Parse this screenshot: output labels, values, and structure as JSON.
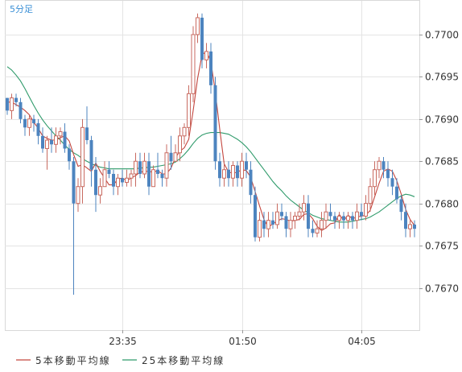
{
  "timeframe_label": "5分足",
  "legend": [
    {
      "label": "5本移動平均線",
      "color": "#c4473f"
    },
    {
      "label": "25本移動平均線",
      "color": "#2e9a6a"
    }
  ],
  "colors": {
    "up": "#c86a60",
    "down": "#4d84bf"
  },
  "chart_data": {
    "type": "candlestick",
    "ylim": [
      0.7665,
      0.7704
    ],
    "y_ticks": [
      0.77,
      0.7695,
      0.769,
      0.7685,
      0.768,
      0.7675,
      0.767
    ],
    "y_tick_labels": [
      "0.7700",
      "0.7695",
      "0.7690",
      "0.7685",
      "0.7680",
      "0.7675",
      "0.7670"
    ],
    "x_ticks": [
      {
        "index": 26,
        "label": "23:35"
      },
      {
        "index": 53,
        "label": "01:50"
      },
      {
        "index": 80,
        "label": "04:05"
      }
    ],
    "candles": [
      [
        0.76925,
        0.76925,
        0.76905,
        0.7691
      ],
      [
        0.7691,
        0.7693,
        0.769,
        0.76925
      ],
      [
        0.76925,
        0.7693,
        0.76915,
        0.7692
      ],
      [
        0.7692,
        0.76925,
        0.76895,
        0.769
      ],
      [
        0.769,
        0.76905,
        0.7688,
        0.7689
      ],
      [
        0.7689,
        0.76905,
        0.7688,
        0.769
      ],
      [
        0.769,
        0.76905,
        0.76885,
        0.76895
      ],
      [
        0.76895,
        0.769,
        0.7687,
        0.7688
      ],
      [
        0.7688,
        0.7689,
        0.7686,
        0.76865
      ],
      [
        0.76865,
        0.7688,
        0.7684,
        0.76875
      ],
      [
        0.76875,
        0.7689,
        0.7686,
        0.7687
      ],
      [
        0.7687,
        0.7689,
        0.7686,
        0.7688
      ],
      [
        0.7688,
        0.7689,
        0.7687,
        0.76885
      ],
      [
        0.76885,
        0.76895,
        0.7686,
        0.76865
      ],
      [
        0.76865,
        0.7687,
        0.7684,
        0.7685
      ],
      [
        0.7685,
        0.76855,
        0.76692,
        0.768
      ],
      [
        0.768,
        0.7683,
        0.7679,
        0.7682
      ],
      [
        0.7682,
        0.769,
        0.768,
        0.7689
      ],
      [
        0.7689,
        0.76915,
        0.7687,
        0.76875
      ],
      [
        0.76875,
        0.7688,
        0.7682,
        0.7684
      ],
      [
        0.7684,
        0.76855,
        0.7679,
        0.7681
      ],
      [
        0.7681,
        0.7683,
        0.768,
        0.7682
      ],
      [
        0.7682,
        0.7685,
        0.7682,
        0.7684
      ],
      [
        0.7684,
        0.7685,
        0.7683,
        0.76835
      ],
      [
        0.76835,
        0.7684,
        0.7681,
        0.7682
      ],
      [
        0.7682,
        0.76835,
        0.7681,
        0.7683
      ],
      [
        0.7683,
        0.7684,
        0.7682,
        0.76825
      ],
      [
        0.76825,
        0.7684,
        0.7682,
        0.7683
      ],
      [
        0.7683,
        0.7684,
        0.7682,
        0.76835
      ],
      [
        0.76835,
        0.7686,
        0.7682,
        0.7685
      ],
      [
        0.7685,
        0.7686,
        0.7683,
        0.76835
      ],
      [
        0.76835,
        0.7686,
        0.7683,
        0.7685
      ],
      [
        0.7685,
        0.7686,
        0.7681,
        0.7682
      ],
      [
        0.7682,
        0.76845,
        0.7682,
        0.7684
      ],
      [
        0.7684,
        0.7686,
        0.7683,
        0.76835
      ],
      [
        0.76835,
        0.7684,
        0.7682,
        0.7683
      ],
      [
        0.7683,
        0.7687,
        0.7682,
        0.7686
      ],
      [
        0.7686,
        0.7688,
        0.7684,
        0.7685
      ],
      [
        0.7685,
        0.7687,
        0.7685,
        0.7686
      ],
      [
        0.7686,
        0.7689,
        0.7685,
        0.7688
      ],
      [
        0.7688,
        0.76895,
        0.7687,
        0.7689
      ],
      [
        0.7689,
        0.7694,
        0.7688,
        0.7693
      ],
      [
        0.7693,
        0.7701,
        0.7692,
        0.77
      ],
      [
        0.77,
        0.77025,
        0.7699,
        0.7702
      ],
      [
        0.7702,
        0.77025,
        0.7696,
        0.7697
      ],
      [
        0.7697,
        0.7699,
        0.7696,
        0.7698
      ],
      [
        0.7698,
        0.7699,
        0.7693,
        0.7694
      ],
      [
        0.7694,
        0.7695,
        0.7684,
        0.7685
      ],
      [
        0.7685,
        0.7686,
        0.7682,
        0.7683
      ],
      [
        0.7683,
        0.7685,
        0.7682,
        0.7684
      ],
      [
        0.7684,
        0.7685,
        0.7682,
        0.7683
      ],
      [
        0.7683,
        0.7685,
        0.7682,
        0.76845
      ],
      [
        0.76845,
        0.7685,
        0.7682,
        0.7683
      ],
      [
        0.7683,
        0.7686,
        0.7682,
        0.7685
      ],
      [
        0.7685,
        0.7686,
        0.7683,
        0.7684
      ],
      [
        0.7684,
        0.7685,
        0.768,
        0.7681
      ],
      [
        0.7681,
        0.7682,
        0.76755,
        0.7676
      ],
      [
        0.7676,
        0.7679,
        0.76755,
        0.7678
      ],
      [
        0.7678,
        0.7679,
        0.7676,
        0.7677
      ],
      [
        0.7677,
        0.7679,
        0.7676,
        0.7678
      ],
      [
        0.7678,
        0.7679,
        0.7677,
        0.76775
      ],
      [
        0.76775,
        0.768,
        0.7677,
        0.7679
      ],
      [
        0.7679,
        0.768,
        0.7678,
        0.76785
      ],
      [
        0.76785,
        0.7679,
        0.7676,
        0.7677
      ],
      [
        0.7677,
        0.7679,
        0.7676,
        0.7678
      ],
      [
        0.7678,
        0.7679,
        0.7677,
        0.76785
      ],
      [
        0.76785,
        0.768,
        0.7678,
        0.7679
      ],
      [
        0.7679,
        0.7681,
        0.7678,
        0.768
      ],
      [
        0.768,
        0.7681,
        0.7676,
        0.7677
      ],
      [
        0.7677,
        0.7678,
        0.7676,
        0.76765
      ],
      [
        0.76765,
        0.7678,
        0.7676,
        0.7677
      ],
      [
        0.7677,
        0.7679,
        0.7676,
        0.7678
      ],
      [
        0.7678,
        0.768,
        0.7677,
        0.7679
      ],
      [
        0.7679,
        0.768,
        0.7678,
        0.76785
      ],
      [
        0.76785,
        0.7679,
        0.7677,
        0.7678
      ],
      [
        0.7678,
        0.7679,
        0.7677,
        0.76785
      ],
      [
        0.76785,
        0.7679,
        0.7677,
        0.7678
      ],
      [
        0.7678,
        0.7679,
        0.7677,
        0.76785
      ],
      [
        0.76785,
        0.7679,
        0.7677,
        0.7678
      ],
      [
        0.7678,
        0.768,
        0.7677,
        0.7679
      ],
      [
        0.7679,
        0.768,
        0.7678,
        0.76785
      ],
      [
        0.76785,
        0.7681,
        0.7678,
        0.768
      ],
      [
        0.768,
        0.7683,
        0.7679,
        0.7682
      ],
      [
        0.7682,
        0.7685,
        0.7681,
        0.7684
      ],
      [
        0.7684,
        0.76855,
        0.7683,
        0.7685
      ],
      [
        0.7685,
        0.76855,
        0.7683,
        0.7684
      ],
      [
        0.7684,
        0.7685,
        0.7682,
        0.7683
      ],
      [
        0.7683,
        0.7684,
        0.7681,
        0.7682
      ],
      [
        0.7682,
        0.7683,
        0.768,
        0.76805
      ],
      [
        0.76805,
        0.7681,
        0.7678,
        0.7679
      ],
      [
        0.7679,
        0.768,
        0.7676,
        0.7677
      ],
      [
        0.7677,
        0.7678,
        0.7676,
        0.76775
      ],
      [
        0.76775,
        0.7678,
        0.7676,
        0.7677
      ]
    ],
    "series": [
      {
        "name": "5本移動平均線",
        "values": [
          0.7692,
          0.7692,
          0.76917,
          0.76914,
          0.7691,
          0.76905,
          0.76896,
          0.76889,
          0.7688,
          0.76877,
          0.76875,
          0.76875,
          0.76878,
          0.7688,
          0.76874,
          0.76858,
          0.76844,
          0.76846,
          0.76842,
          0.76838,
          0.76848,
          0.76838,
          0.7683,
          0.76822,
          0.76822,
          0.76829,
          0.7683,
          0.76827,
          0.7683,
          0.76833,
          0.76837,
          0.76838,
          0.76838,
          0.76837,
          0.76839,
          0.76835,
          0.76835,
          0.76842,
          0.76854,
          0.76862,
          0.76866,
          0.76876,
          0.7691,
          0.76948,
          0.76976,
          0.7698,
          0.76968,
          0.76932,
          0.76888,
          0.76847,
          0.76837,
          0.76836,
          0.76837,
          0.7684,
          0.76839,
          0.76831,
          0.76814,
          0.76797,
          0.76781,
          0.76772,
          0.76776,
          0.76779,
          0.76782,
          0.76781,
          0.76779,
          0.7678,
          0.76781,
          0.76787,
          0.76788,
          0.76782,
          0.76773,
          0.76768,
          0.76771,
          0.76776,
          0.76777,
          0.76787,
          0.7678,
          0.76786,
          0.76782,
          0.76784,
          0.76785,
          0.76786,
          0.76792,
          0.76808,
          0.76824,
          0.76838,
          0.76841,
          0.76838,
          0.76827,
          0.76811,
          0.76793,
          0.76781,
          0.76774
        ]
      },
      {
        "name": "25本移動平均線",
        "values": [
          0.76962,
          0.76958,
          0.76952,
          0.76945,
          0.76936,
          0.76926,
          0.76916,
          0.76907,
          0.76899,
          0.76892,
          0.76886,
          0.7688,
          0.76875,
          0.76869,
          0.76864,
          0.7686,
          0.76857,
          0.76853,
          0.7685,
          0.76847,
          0.76845,
          0.76843,
          0.76842,
          0.76841,
          0.76841,
          0.76841,
          0.76841,
          0.76841,
          0.76841,
          0.76841,
          0.76842,
          0.76842,
          0.76843,
          0.76843,
          0.76844,
          0.76845,
          0.76846,
          0.76847,
          0.76849,
          0.76853,
          0.76858,
          0.76864,
          0.76871,
          0.76877,
          0.76881,
          0.76883,
          0.76884,
          0.76884,
          0.76884,
          0.76883,
          0.76882,
          0.76879,
          0.76876,
          0.76872,
          0.76867,
          0.76861,
          0.76854,
          0.76847,
          0.7684,
          0.76833,
          0.76826,
          0.7682,
          0.76815,
          0.76809,
          0.76804,
          0.768,
          0.76796,
          0.76792,
          0.76789,
          0.76786,
          0.76784,
          0.76782,
          0.76781,
          0.7678,
          0.76779,
          0.76778,
          0.76778,
          0.76778,
          0.76779,
          0.7678,
          0.76781,
          0.76782,
          0.76784,
          0.76787,
          0.7679,
          0.76794,
          0.76798,
          0.76802,
          0.76806,
          0.76809,
          0.76811,
          0.7681,
          0.76808
        ]
      }
    ]
  }
}
